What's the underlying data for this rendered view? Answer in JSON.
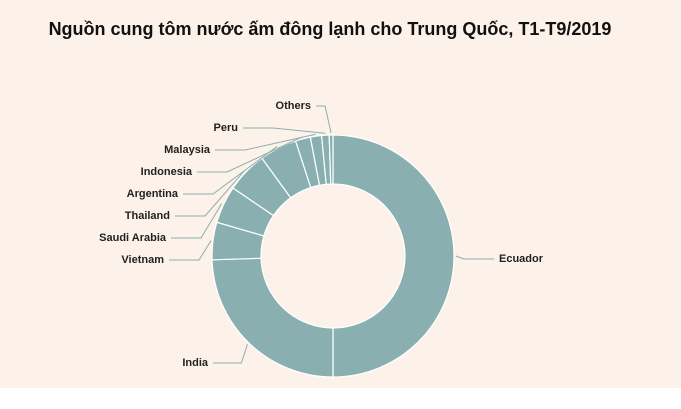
{
  "chart_data": {
    "type": "pie",
    "donut": true,
    "title": "Nguồn cung tôm nước ấm đông lạnh cho Trung Quốc, T1-T9/2019",
    "categories": [
      "Ecuador",
      "India",
      "Vietnam",
      "Saudi Arabia",
      "Thailand",
      "Argentina",
      "Indonesia",
      "Malaysia",
      "Peru",
      "Others"
    ],
    "values": [
      50,
      24.5,
      5,
      5,
      5.5,
      5,
      2,
      1.5,
      1,
      0.5
    ],
    "color": "#8aafb0"
  }
}
